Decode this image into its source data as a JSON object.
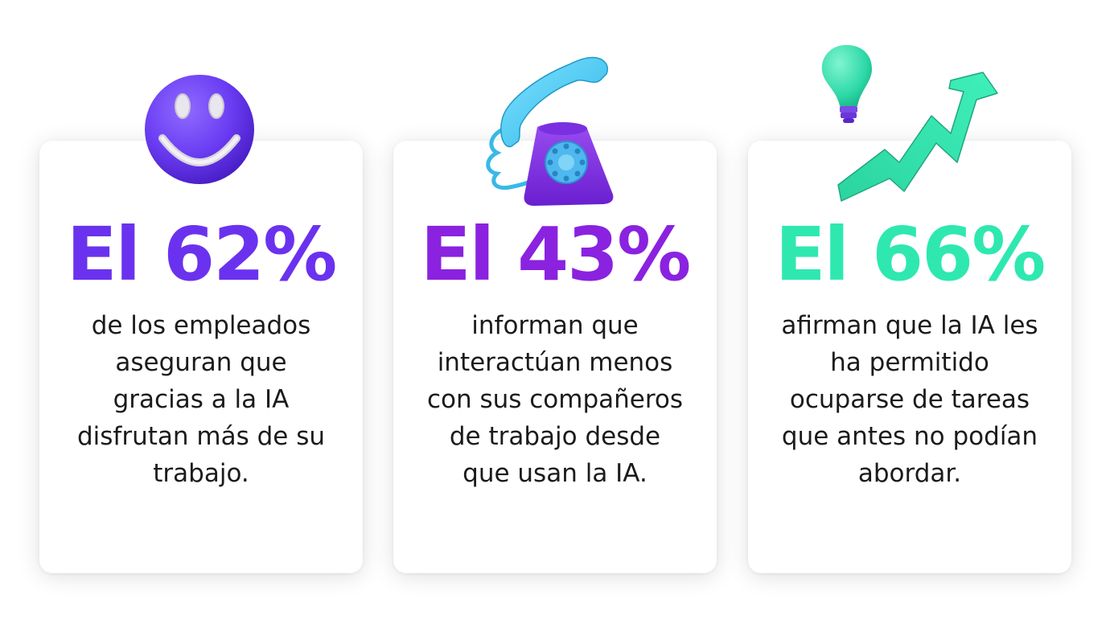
{
  "cards": [
    {
      "icon": "smiley-face-icon",
      "stat": "El 62%",
      "color": "#6a32ee",
      "lines": [
        "de los empleados",
        "aseguran que",
        "gracias a la IA",
        "disfrutan más de su",
        "trabajo."
      ]
    },
    {
      "icon": "telephone-icon",
      "stat": "El 43%",
      "color": "#8a22e0",
      "lines": [
        "informan que",
        "interactúan menos",
        "con sus compañeros",
        "de trabajo desde",
        "que usan la IA."
      ]
    },
    {
      "icon": "lightbulb-trend-arrow-icon",
      "stat": "El 66%",
      "color": "#2ee8b0",
      "lines": [
        "afirman que la IA les",
        "ha permitido",
        "ocuparse de tareas",
        "que antes no podían",
        "abordar."
      ]
    }
  ]
}
